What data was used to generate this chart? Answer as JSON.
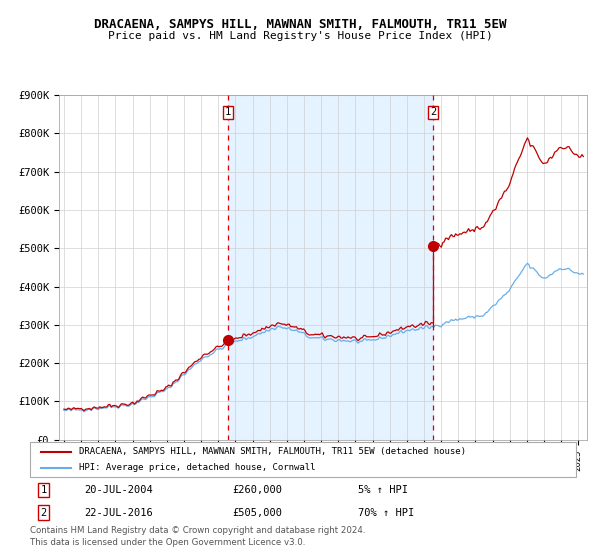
{
  "title": "DRACAENA, SAMPYS HILL, MAWNAN SMITH, FALMOUTH, TR11 5EW",
  "subtitle": "Price paid vs. HM Land Registry's House Price Index (HPI)",
  "legend_line1": "DRACAENA, SAMPYS HILL, MAWNAN SMITH, FALMOUTH, TR11 5EW (detached house)",
  "legend_line2": "HPI: Average price, detached house, Cornwall",
  "ann1_date": "20-JUL-2004",
  "ann1_price": "£260,000",
  "ann1_pct": "5% ↑ HPI",
  "ann2_date": "22-JUL-2016",
  "ann2_price": "£505,000",
  "ann2_pct": "70% ↑ HPI",
  "footer1": "Contains HM Land Registry data © Crown copyright and database right 2024.",
  "footer2": "This data is licensed under the Open Government Licence v3.0.",
  "ylim": [
    0,
    900000
  ],
  "yticks": [
    0,
    100000,
    200000,
    300000,
    400000,
    500000,
    600000,
    700000,
    800000,
    900000
  ],
  "ytick_labels": [
    "£0",
    "£100K",
    "£200K",
    "£300K",
    "£400K",
    "£500K",
    "£600K",
    "£700K",
    "£800K",
    "£900K"
  ],
  "hpi_color": "#6aaee8",
  "property_color": "#c00000",
  "dashed_color": "#e00000",
  "bg_shade_color": "#ddeeff",
  "purchase1_year": 2004.55,
  "purchase2_year": 2016.55,
  "purchase1_price": 260000,
  "purchase2_price": 505000
}
